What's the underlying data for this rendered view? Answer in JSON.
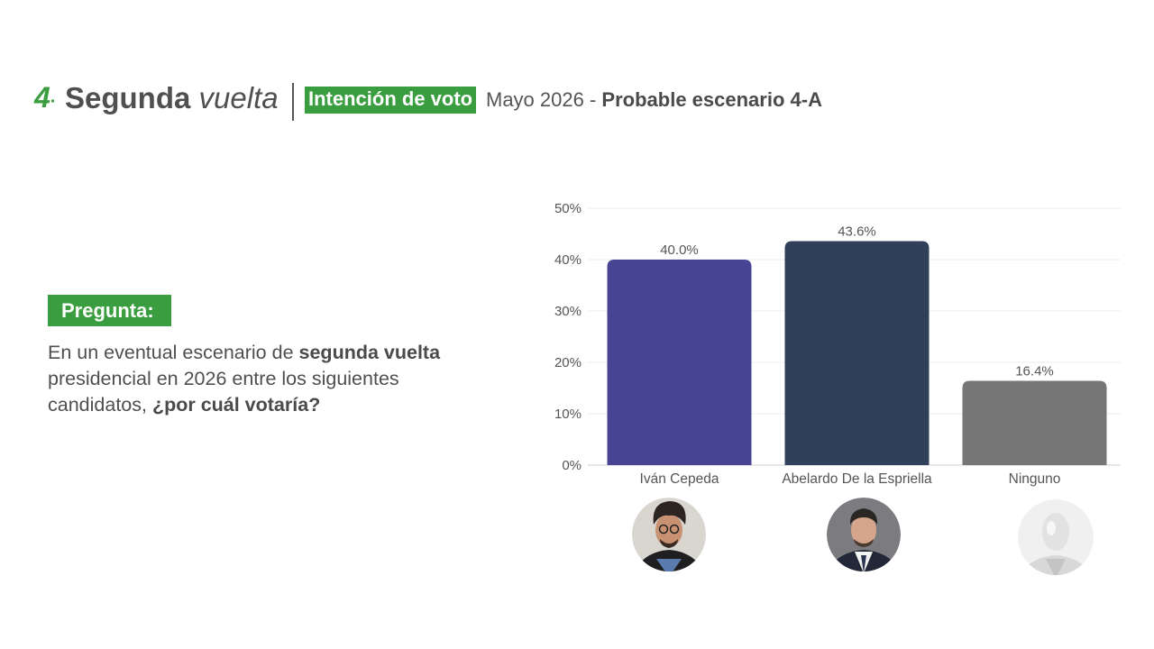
{
  "header": {
    "number": "4",
    "title_bold": "Segunda",
    "title_italic": "vuelta",
    "badge": "Intención de voto",
    "subtitle_date": "Mayo  2026 -",
    "subtitle_scenario": "Probable escenario 4-A"
  },
  "question": {
    "label": "Pregunta:",
    "text_1": "En un eventual escenario de ",
    "text_bold_1": "segunda vuelta",
    "text_2": " presidencial en 2026 entre los siguientes candidatos, ",
    "text_bold_2": "¿por cuál votaría?"
  },
  "colors": {
    "green": "#3a9d3f",
    "bar_1": "#474593",
    "bar_2": "#30405b",
    "bar_3": "#767676"
  },
  "chart_data": {
    "type": "bar",
    "categories": [
      "Iván Cepeda",
      "Abelardo De la Espriella",
      "Ninguno"
    ],
    "values": [
      40.0,
      43.6,
      16.4
    ],
    "value_labels": [
      "40.0%",
      "43.6%",
      "16.4%"
    ],
    "colors": [
      "#474593",
      "#30405b",
      "#767676"
    ],
    "ylim": [
      0,
      50
    ],
    "yticks": [
      0,
      10,
      20,
      30,
      40,
      50
    ],
    "ytick_labels": [
      "0%",
      "10%",
      "20%",
      "30%",
      "40%",
      "50%"
    ],
    "grid": true,
    "title": "",
    "xlabel": "",
    "ylabel": ""
  },
  "avatars": [
    {
      "candidate": "Iván Cepeda",
      "icon": "person-photo-icon"
    },
    {
      "candidate": "Abelardo De la Espriella",
      "icon": "person-photo-icon"
    },
    {
      "candidate": "Ninguno",
      "icon": "mannequin-icon"
    }
  ]
}
